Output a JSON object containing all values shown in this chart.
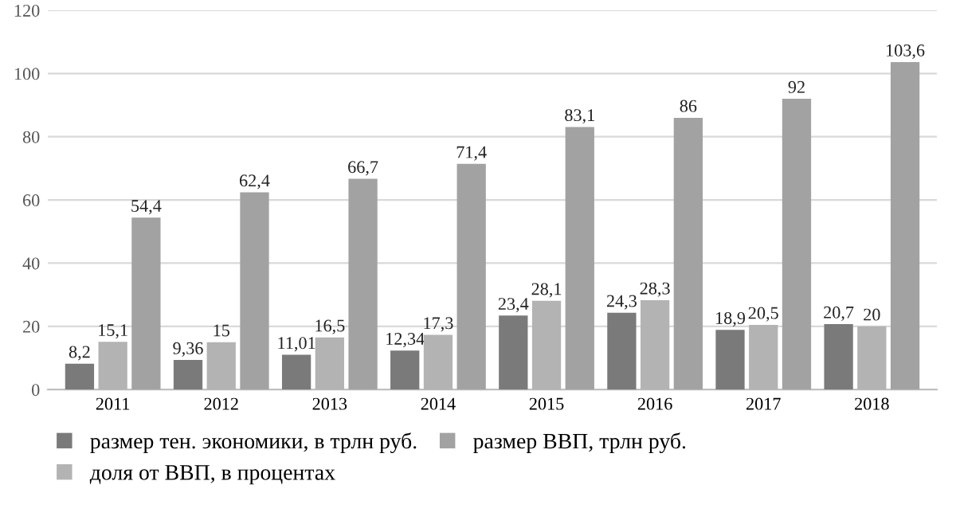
{
  "chart_data": {
    "type": "bar",
    "categories": [
      "2011",
      "2012",
      "2013",
      "2014",
      "2015",
      "2016",
      "2017",
      "2018"
    ],
    "series": [
      {
        "name": "размер тен. экономики, в трлн руб.",
        "color": "#7a7a7a",
        "values": [
          8.2,
          9.36,
          11.01,
          12.34,
          23.4,
          24.3,
          18.9,
          20.7
        ],
        "value_labels": [
          "8,2",
          "9,36",
          "11,01",
          "12,34",
          "23,4",
          "24,3",
          "18,9",
          "20,7"
        ]
      },
      {
        "name": "доля от ВВП, в процентах",
        "color": "#b3b3b3",
        "values": [
          15.1,
          15,
          16.5,
          17.3,
          28.1,
          28.3,
          20.5,
          20
        ],
        "value_labels": [
          "15,1",
          "15",
          "16,5",
          "17,3",
          "28,1",
          "28,3",
          "20,5",
          "20"
        ]
      },
      {
        "name": "размер ВВП, трлн руб.",
        "color": "#a2a2a2",
        "values": [
          54.4,
          62.4,
          66.7,
          71.4,
          83.1,
          86,
          92,
          103.6
        ],
        "value_labels": [
          "54,4",
          "62,4",
          "66,7",
          "71,4",
          "83,1",
          "86",
          "92",
          "103,6"
        ]
      }
    ],
    "ylim": [
      0,
      120
    ],
    "yticks": [
      0,
      20,
      40,
      60,
      80,
      100,
      120
    ],
    "grid": "y",
    "legend": "bottom"
  }
}
